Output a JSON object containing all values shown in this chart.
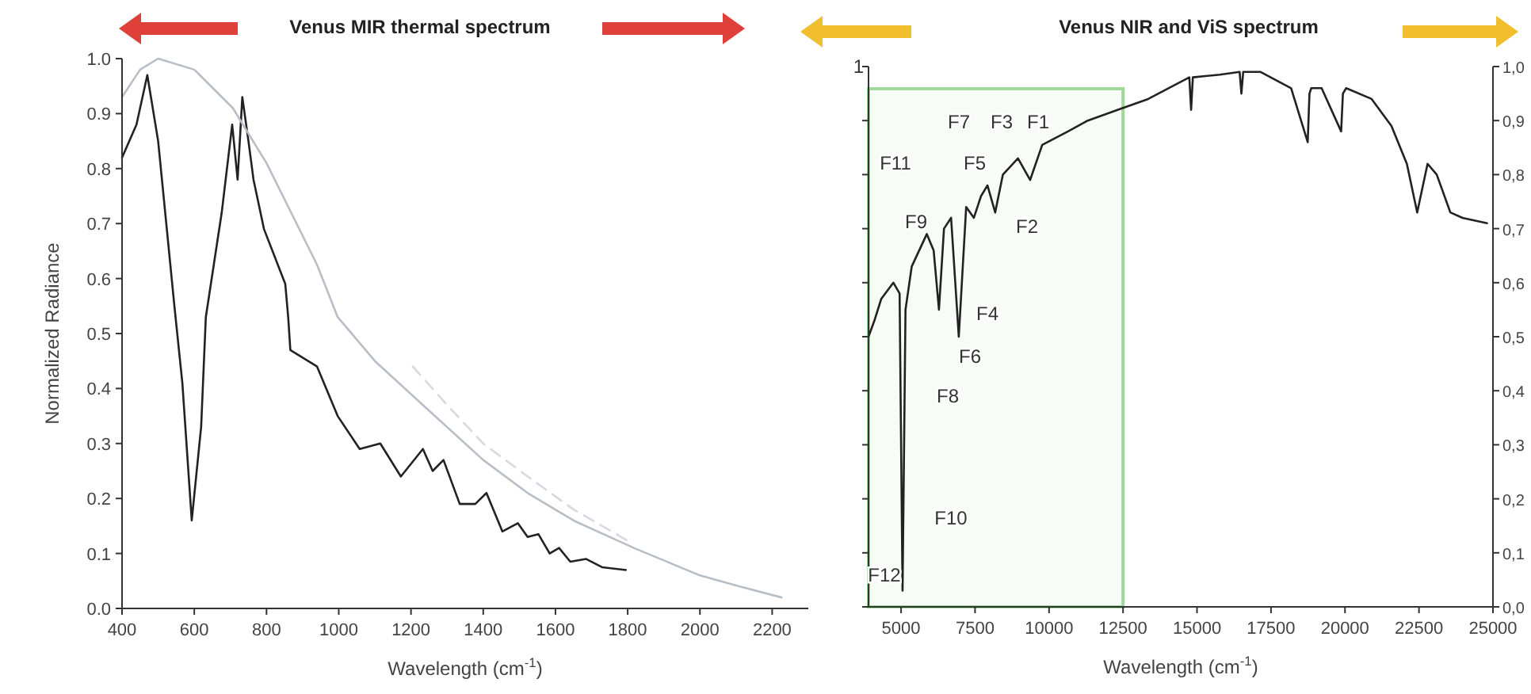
{
  "chart_data": [
    {
      "type": "line",
      "title": "Venus MIR thermal spectrum",
      "xlabel": "Wavelength (cm$^{-1}$)",
      "ylabel": "Normalized Radiance",
      "xlim": [
        400,
        2300
      ],
      "xticks": [
        400,
        600,
        800,
        1000,
        1200,
        1400,
        1600,
        1800,
        2000,
        2200
      ],
      "ylim": [
        0,
        1
      ],
      "yticks": [
        {
          "value": 0,
          "label": "0.0"
        },
        {
          "value": 0.1,
          "label": "0.1"
        },
        {
          "value": 0.2,
          "label": "0.2"
        },
        {
          "value": 0.3,
          "label": "0.3"
        },
        {
          "value": 0.4,
          "label": "0.4"
        },
        {
          "value": 0.5,
          "label": "0.5"
        },
        {
          "value": 0.6,
          "label": "0.6"
        },
        {
          "value": 0.7,
          "label": "0.7"
        },
        {
          "value": 0.8,
          "label": "0.8"
        },
        {
          "value": 0.9,
          "label": "0.9"
        },
        {
          "value": 1,
          "label": "1.0"
        }
      ],
      "series": [
        {
          "color": "#222222",
          "line_style": "solid",
          "x": [
            400,
            440,
            470,
            500,
            545,
            567,
            593,
            619,
            632,
            676,
            705,
            720,
            733,
            750,
            764,
            793,
            852,
            860,
            866,
            940,
            997,
            1058,
            1115,
            1172,
            1233,
            1260,
            1290,
            1335,
            1378,
            1409,
            1453,
            1496,
            1523,
            1553,
            1584,
            1610,
            1641,
            1685,
            1729,
            1795
          ],
          "values": [
            0.82,
            0.88,
            0.97,
            0.85,
            0.55,
            0.41,
            0.16,
            0.33,
            0.53,
            0.72,
            0.88,
            0.78,
            0.93,
            0.85,
            0.78,
            0.69,
            0.59,
            0.53,
            0.47,
            0.44,
            0.35,
            0.29,
            0.3,
            0.24,
            0.29,
            0.25,
            0.27,
            0.19,
            0.19,
            0.21,
            0.14,
            0.155,
            0.13,
            0.135,
            0.1,
            0.11,
            0.085,
            0.09,
            0.075,
            0.07
          ]
        },
        {
          "color": "#b8bec6",
          "line_style": "solid",
          "x": [
            400,
            450,
            500,
            600,
            707,
            800,
            940,
            997,
            1100,
            1233,
            1400,
            1523,
            1650,
            1817,
            2000,
            2110,
            2226
          ],
          "values": [
            0.93,
            0.98,
            1.0,
            0.98,
            0.91,
            0.81,
            0.625,
            0.53,
            0.45,
            0.37,
            0.27,
            0.21,
            0.16,
            0.11,
            0.06,
            0.04,
            0.02
          ]
        },
        {
          "color": "#d6dae0",
          "line_style": "dashed",
          "x": [
            1205,
            1300,
            1400,
            1523,
            1650,
            1808
          ],
          "values": [
            0.44,
            0.37,
            0.3,
            0.24,
            0.18,
            0.12
          ]
        }
      ]
    },
    {
      "type": "line",
      "title": "Venus NIR and ViS spectrum",
      "xlabel": "Wavelength (cm$^{-1}$)",
      "xlim": [
        3900,
        25000
      ],
      "xticks": [
        5000,
        7500,
        10000,
        12500,
        15000,
        17500,
        20000,
        22500,
        25000
      ],
      "y2lim": [
        0,
        1
      ],
      "y2ticks": [
        {
          "value": 0,
          "label": "0,0"
        },
        {
          "value": 0.1,
          "label": "0,1"
        },
        {
          "value": 0.2,
          "label": "0,2"
        },
        {
          "value": 0.3,
          "label": "0,3"
        },
        {
          "value": 0.4,
          "label": "0,4"
        },
        {
          "value": 0.5,
          "label": "0,5"
        },
        {
          "value": 0.6,
          "label": "0,6"
        },
        {
          "value": 0.7,
          "label": "0,7"
        },
        {
          "value": 0.8,
          "label": "0,8"
        },
        {
          "value": 0.9,
          "label": "0,9"
        },
        {
          "value": 1,
          "label": "1,0"
        }
      ],
      "bands": [
        {
          "axis": "x",
          "from": 3900,
          "to": 12500,
          "color": "#9fd89a"
        }
      ],
      "series": [
        {
          "color": "#222222",
          "line_style": "solid",
          "axis": "y2",
          "x": [
            3900,
            4100,
            4330,
            4740,
            4950,
            5050,
            5150,
            5360,
            5870,
            6100,
            6280,
            6450,
            6690,
            6950,
            7200,
            7460,
            7700,
            7920,
            8180,
            8440,
            8950,
            9360,
            9770,
            10640,
            11310,
            12330,
            13350,
            14740,
            14800,
            14860,
            15770,
            16440,
            16500,
            16560,
            17150,
            18180,
            18740,
            18800,
            18860,
            19210,
            19870,
            19930,
            20040,
            20900,
            21570,
            22090,
            22440,
            22790,
            23100,
            23560,
            23970,
            24800
          ],
          "values": [
            0.5,
            0.53,
            0.57,
            0.6,
            0.58,
            0.03,
            0.55,
            0.63,
            0.69,
            0.66,
            0.55,
            0.7,
            0.72,
            0.5,
            0.74,
            0.72,
            0.76,
            0.78,
            0.73,
            0.8,
            0.83,
            0.79,
            0.855,
            0.88,
            0.9,
            0.92,
            0.94,
            0.98,
            0.92,
            0.98,
            0.985,
            0.99,
            0.95,
            0.99,
            0.99,
            0.96,
            0.86,
            0.95,
            0.96,
            0.96,
            0.88,
            0.95,
            0.96,
            0.94,
            0.89,
            0.82,
            0.73,
            0.82,
            0.8,
            0.73,
            0.72,
            0.71
          ]
        }
      ],
      "annotations": [
        "F1",
        "F2",
        "F3",
        "F4",
        "F5",
        "F6",
        "F7",
        "F8",
        "F9",
        "F10",
        "F11",
        "F12",
        "1"
      ]
    }
  ]
}
